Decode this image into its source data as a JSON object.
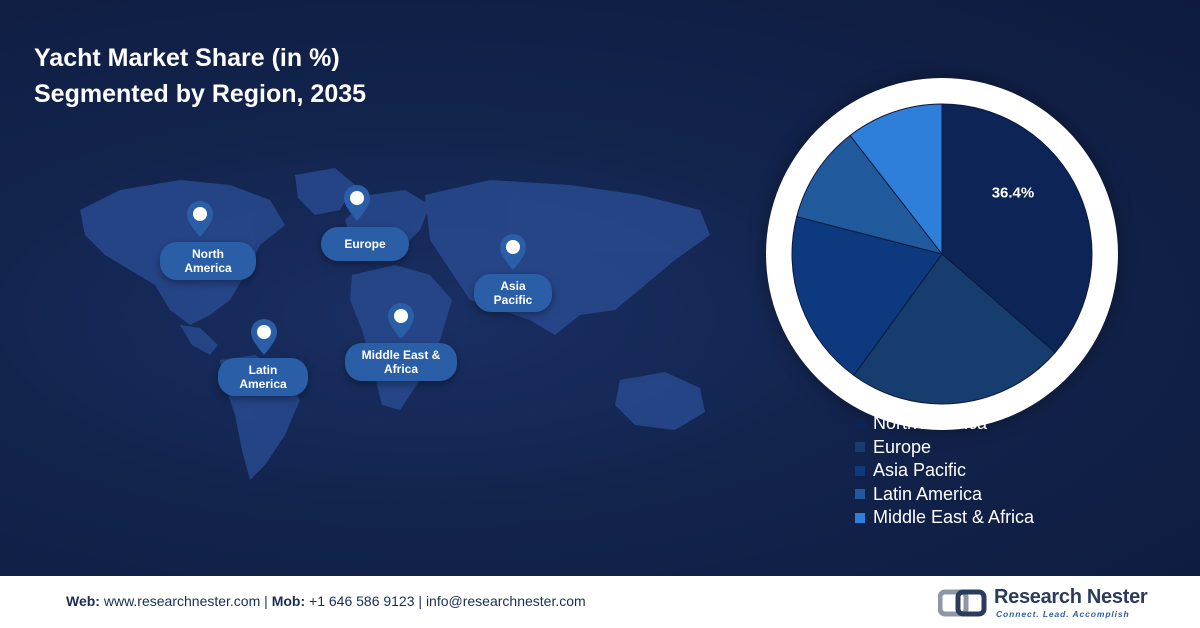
{
  "title": {
    "line1": "Yacht Market Share (in %)",
    "line2": "Segmented by Region, 2035"
  },
  "map": {
    "pins": [
      {
        "label": "North America"
      },
      {
        "label": "Europe"
      },
      {
        "label": "Asia Pacific"
      },
      {
        "label": "Latin America"
      },
      {
        "label": "Middle East & Africa"
      }
    ]
  },
  "chart_data": {
    "type": "pie",
    "title": "Yacht Market Share (in %) Segmented by Region, 2035",
    "categories": [
      "North America",
      "Europe",
      "Asia Pacific",
      "Latin America",
      "Middle East & Africa"
    ],
    "values": [
      36.4,
      23.6,
      19.0,
      10.5,
      10.5
    ],
    "labels": [
      "36.4%",
      "",
      "",
      "",
      ""
    ],
    "colors": [
      "#0d2456",
      "#173c6e",
      "#0d3a7e",
      "#20599c",
      "#2d7fda"
    ],
    "legend": "bottom-right"
  },
  "footer": {
    "web_key": "Web:",
    "web_value": "www.researchnester.com",
    "mob_key": "Mob:",
    "mob_value": "+1 646 586 9123",
    "email": "info@researchnester.com",
    "separator": "|",
    "brand": "Research Nester",
    "tagline": "Connect. Lead. Accomplish"
  }
}
